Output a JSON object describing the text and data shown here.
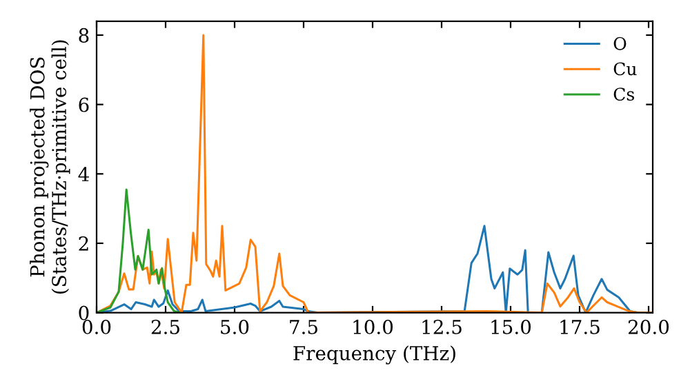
{
  "chart_data": {
    "type": "line",
    "xlabel": "Frequency (THz)",
    "ylabel": "Phonon projected DOS\n(States/THz·primitive cell)",
    "xlim": [
      0,
      20.15
    ],
    "ylim": [
      0,
      8.4
    ],
    "xticks": [
      {
        "value": 0,
        "label": "0.0"
      },
      {
        "value": 2.5,
        "label": "2.5"
      },
      {
        "value": 5,
        "label": "5.0"
      },
      {
        "value": 7.5,
        "label": "7.5"
      },
      {
        "value": 10,
        "label": "10.0"
      },
      {
        "value": 12.5,
        "label": "12.5"
      },
      {
        "value": 15,
        "label": "15.0"
      },
      {
        "value": 17.5,
        "label": "17.5"
      },
      {
        "value": 20,
        "label": "20.0"
      }
    ],
    "yticks": [
      0,
      2,
      4,
      6,
      8
    ],
    "legend": "top right",
    "grid": false,
    "series": [
      {
        "name": "O",
        "color": "#1f77b4",
        "x": [
          0,
          0.5,
          1.0,
          1.25,
          1.42,
          1.75,
          2.0,
          2.08,
          2.25,
          2.42,
          2.58,
          2.75,
          3.0,
          3.42,
          3.67,
          3.83,
          3.95,
          5.0,
          5.58,
          5.75,
          5.92,
          6.33,
          6.62,
          6.75,
          7.5,
          7.67,
          8.0,
          13.33,
          13.58,
          13.8,
          14.05,
          14.3,
          14.42,
          14.72,
          14.83,
          14.97,
          15.25,
          15.42,
          15.53,
          15.63,
          16.13,
          16.37,
          16.58,
          16.8,
          16.97,
          17.28,
          17.45,
          17.72,
          18.0,
          18.3,
          18.5,
          18.92,
          19.33,
          19.6,
          20.15
        ],
        "values": [
          0,
          0.05,
          0.24,
          0.1,
          0.3,
          0.24,
          0.17,
          0.37,
          0.17,
          0.27,
          0.64,
          0.24,
          0.04,
          0.04,
          0.1,
          0.37,
          0.04,
          0.15,
          0.26,
          0.2,
          0.04,
          0.17,
          0.34,
          0.17,
          0.1,
          0.04,
          0,
          0.04,
          1.43,
          1.7,
          2.5,
          0.97,
          0.7,
          1.16,
          0,
          1.27,
          1.1,
          1.23,
          1.8,
          0,
          0,
          1.74,
          1.16,
          0.7,
          0.97,
          1.64,
          0.5,
          0,
          0.5,
          0.97,
          0.66,
          0.44,
          0.04,
          0,
          0
        ]
      },
      {
        "name": "Cu",
        "color": "#ff7f0e",
        "x": [
          0,
          0.5,
          0.8,
          1.0,
          1.17,
          1.33,
          1.5,
          1.67,
          1.83,
          1.92,
          2.0,
          2.08,
          2.17,
          2.25,
          2.33,
          2.45,
          2.58,
          2.7,
          2.83,
          3.08,
          3.25,
          3.38,
          3.5,
          3.62,
          3.87,
          3.97,
          4.13,
          4.22,
          4.33,
          4.45,
          4.55,
          4.67,
          5.17,
          5.42,
          5.58,
          5.75,
          5.92,
          6.17,
          6.42,
          6.62,
          6.75,
          7.0,
          7.5,
          7.67,
          14.17,
          16.13,
          16.33,
          16.58,
          16.8,
          17.08,
          17.3,
          17.5,
          17.75,
          18.0,
          18.3,
          18.5,
          18.9,
          19.3,
          19.6,
          20.15
        ],
        "values": [
          0,
          0.2,
          0.6,
          1.13,
          0.67,
          0.67,
          1.63,
          1.24,
          1.3,
          0.84,
          1.76,
          1.1,
          1.17,
          0.84,
          1.24,
          0.7,
          2.12,
          1.24,
          0.3,
          0,
          0.8,
          0.8,
          2.3,
          1.5,
          8.0,
          1.4,
          1.2,
          1.04,
          1.5,
          1.04,
          2.5,
          0.64,
          0.84,
          1.3,
          2.1,
          1.9,
          0.04,
          0.3,
          0.77,
          1.7,
          0.77,
          0.5,
          0.3,
          0,
          0.04,
          0,
          0.84,
          0.58,
          0.18,
          0.44,
          0.7,
          0.3,
          0,
          0.2,
          0.44,
          0.3,
          0.17,
          0.04,
          0,
          0
        ]
      },
      {
        "name": "Cs",
        "color": "#2ca02c",
        "x": [
          0,
          0.5,
          0.8,
          0.95,
          1.08,
          1.24,
          1.4,
          1.5,
          1.67,
          1.88,
          2.0,
          2.17,
          2.25,
          2.37,
          2.47,
          2.58,
          2.8,
          3.0
        ],
        "values": [
          0,
          0.15,
          0.6,
          2.0,
          3.55,
          2.3,
          1.24,
          1.63,
          1.24,
          2.39,
          1.1,
          1.24,
          0.84,
          1.28,
          0.7,
          0.3,
          0.05,
          0
        ]
      }
    ]
  }
}
